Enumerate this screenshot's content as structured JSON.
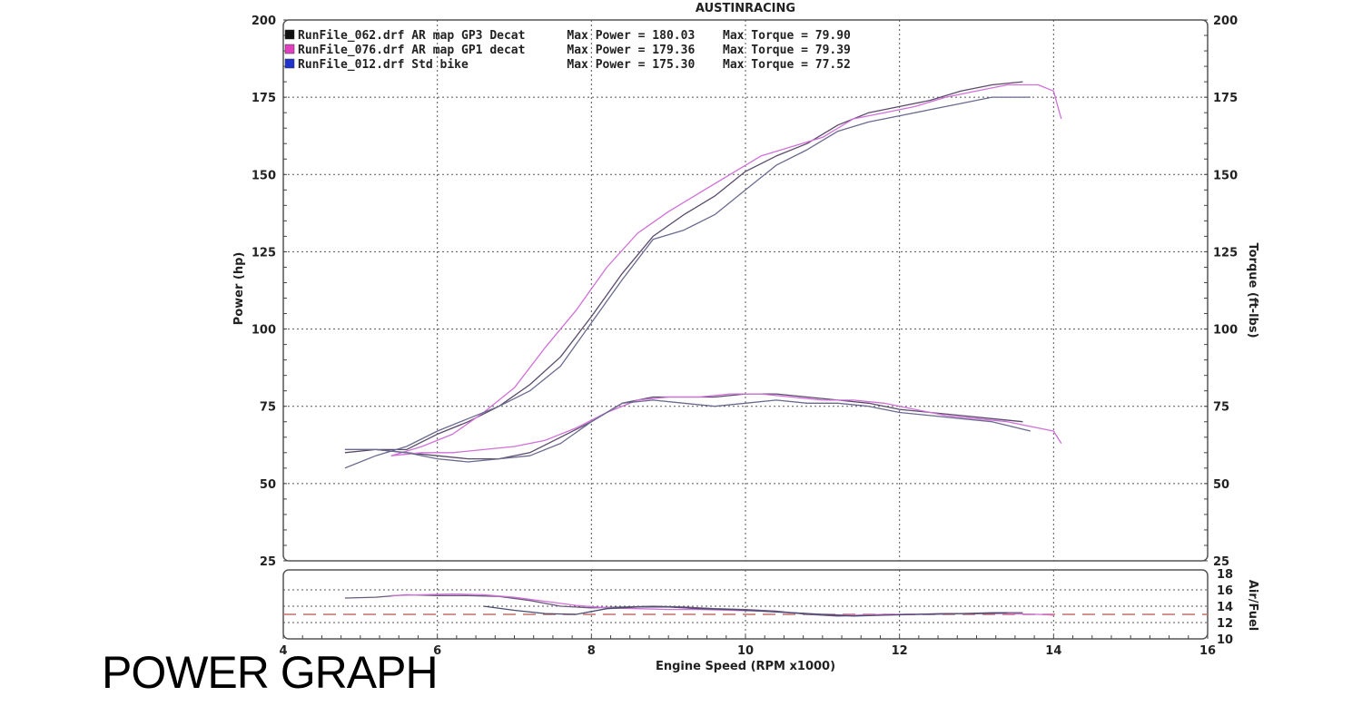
{
  "caption": "POWER GRAPH",
  "chart_data": {
    "type": "line",
    "title": "AUSTINRACING",
    "xlabel": "Engine Speed (RPM x1000)",
    "ylabel_left": "Power (hp)",
    "ylabel_right": "Torque (ft-lbs)",
    "ylabel_afr": "Air/Fuel",
    "xlim": [
      4,
      16
    ],
    "ylim": [
      25,
      200
    ],
    "afr_ylim": [
      10,
      18
    ],
    "xticks": [
      "4",
      "6",
      "8",
      "10",
      "12",
      "14",
      "16"
    ],
    "yticks": [
      "25",
      "50",
      "75",
      "100",
      "125",
      "150",
      "175",
      "200"
    ],
    "afr_ticks": [
      "10",
      "12",
      "14",
      "16",
      "18"
    ],
    "grid": true,
    "legend_position": "top-left",
    "legend": [
      {
        "color": "#111111",
        "file": "RunFile_062.drf",
        "desc": "AR map GP3 Decat",
        "power_label": "Max Power =",
        "power_value": "180.03",
        "torque_label": "Max Torque =",
        "torque_value": "79.90"
      },
      {
        "color": "#e040c0",
        "file": "RunFile_076.drf",
        "desc": "AR map GP1 decat",
        "power_label": "Max Power =",
        "power_value": "179.36",
        "torque_label": "Max Torque =",
        "torque_value": "79.39"
      },
      {
        "color": "#2233cc",
        "file": "RunFile_012.drf",
        "desc": "Std bike",
        "power_label": "Max Power =",
        "power_value": "175.30",
        "torque_label": "Max Torque =",
        "torque_value": "77.52"
      }
    ],
    "series": [
      {
        "kind": "power",
        "color": "#5a4a6a",
        "width": 1.3,
        "x": [
          4.8,
          5.2,
          5.6,
          6.0,
          6.4,
          6.8,
          7.2,
          7.6,
          8.0,
          8.4,
          8.8,
          9.2,
          9.6,
          10.0,
          10.4,
          10.8,
          11.2,
          11.6,
          12.0,
          12.4,
          12.8,
          13.2,
          13.6
        ],
        "y": [
          60,
          61,
          61,
          66,
          70,
          75,
          82,
          91,
          104,
          118,
          130,
          137,
          143,
          151,
          156,
          160,
          166,
          170,
          172,
          174,
          177,
          179,
          180
        ]
      },
      {
        "kind": "power",
        "color": "#d070d8",
        "width": 1.3,
        "x": [
          5.4,
          5.8,
          6.2,
          6.6,
          7.0,
          7.4,
          7.8,
          8.2,
          8.6,
          9.0,
          9.4,
          9.8,
          10.2,
          10.6,
          11.0,
          11.4,
          11.8,
          12.2,
          12.6,
          13.0,
          13.4,
          13.8,
          14.0,
          14.1
        ],
        "y": [
          59,
          62,
          66,
          73,
          81,
          94,
          106,
          120,
          131,
          138,
          144,
          150,
          156,
          159,
          162,
          168,
          170,
          172,
          175,
          177,
          179,
          179,
          177,
          168
        ]
      },
      {
        "kind": "power",
        "color": "#6a6a90",
        "width": 1.3,
        "x": [
          4.8,
          5.2,
          5.6,
          6.0,
          6.4,
          6.8,
          7.2,
          7.6,
          8.0,
          8.4,
          8.8,
          9.2,
          9.6,
          10.0,
          10.4,
          10.8,
          11.2,
          11.6,
          12.0,
          12.4,
          12.8,
          13.2,
          13.7
        ],
        "y": [
          55,
          59,
          62,
          67,
          71,
          75,
          80,
          88,
          102,
          116,
          129,
          132,
          137,
          145,
          153,
          158,
          164,
          167,
          169,
          171,
          173,
          175,
          175
        ]
      },
      {
        "kind": "torque",
        "color": "#5a4a6a",
        "width": 1.3,
        "x": [
          4.8,
          5.2,
          5.6,
          6.0,
          6.4,
          6.8,
          7.2,
          7.6,
          8.0,
          8.4,
          8.8,
          9.2,
          9.6,
          10.0,
          10.4,
          10.8,
          11.2,
          11.6,
          12.0,
          12.4,
          12.8,
          13.2,
          13.6
        ],
        "y": [
          61,
          61,
          60,
          59,
          58,
          58,
          60,
          65,
          70,
          76,
          78,
          78,
          78,
          79,
          79,
          78,
          77,
          76,
          74,
          73,
          72,
          71,
          70
        ]
      },
      {
        "kind": "torque",
        "color": "#d070d8",
        "width": 1.3,
        "x": [
          5.4,
          5.8,
          6.2,
          6.6,
          7.0,
          7.4,
          7.8,
          8.2,
          8.6,
          9.0,
          9.4,
          9.8,
          10.2,
          10.6,
          11.0,
          11.4,
          11.8,
          12.2,
          12.6,
          13.0,
          13.4,
          13.8,
          14.0,
          14.1
        ],
        "y": [
          59,
          60,
          60,
          61,
          62,
          64,
          68,
          73,
          77,
          78,
          78,
          79,
          79,
          78,
          77,
          77,
          76,
          74,
          72,
          71,
          70,
          68,
          67,
          63
        ]
      },
      {
        "kind": "torque",
        "color": "#6a6a90",
        "width": 1.3,
        "x": [
          4.8,
          5.2,
          5.6,
          6.0,
          6.4,
          6.8,
          7.2,
          7.6,
          8.0,
          8.4,
          8.8,
          9.2,
          9.6,
          10.0,
          10.4,
          10.8,
          11.2,
          11.6,
          12.0,
          12.4,
          12.8,
          13.2,
          13.7
        ],
        "y": [
          61,
          61,
          60,
          58,
          57,
          58,
          59,
          63,
          70,
          76,
          77,
          76,
          75,
          76,
          77,
          76,
          76,
          75,
          73,
          72,
          71,
          70,
          67
        ]
      },
      {
        "kind": "afr",
        "color": "#6a5a7a",
        "width": 1.3,
        "x": [
          4.8,
          5.2,
          5.6,
          6.0,
          6.4,
          6.8,
          7.2,
          7.6,
          8.0,
          8.4,
          8.8,
          9.2,
          9.6,
          10.0,
          10.4,
          10.8,
          11.2,
          11.6,
          12.0,
          12.4,
          12.8,
          13.2,
          13.6
        ],
        "y": [
          15.0,
          15.1,
          15.4,
          15.3,
          15.3,
          15.2,
          14.7,
          14.0,
          13.8,
          13.9,
          14.0,
          13.9,
          13.7,
          13.6,
          13.4,
          13.0,
          12.8,
          12.9,
          13.0,
          13.0,
          13.1,
          13.2,
          13.2
        ]
      },
      {
        "kind": "afr",
        "color": "#d070d8",
        "width": 1.3,
        "x": [
          5.4,
          5.8,
          6.2,
          6.6,
          7.0,
          7.4,
          7.8,
          8.2,
          8.6,
          9.0,
          9.4,
          9.8,
          10.2,
          10.6,
          11.0,
          11.4,
          11.8,
          12.2,
          12.6,
          13.0,
          13.4,
          13.8,
          14.0
        ],
        "y": [
          15.3,
          15.4,
          15.5,
          15.4,
          15.1,
          14.6,
          14.1,
          13.8,
          13.7,
          13.6,
          13.6,
          13.5,
          13.4,
          13.2,
          13.0,
          12.9,
          13.0,
          13.0,
          13.1,
          13.1,
          13.1,
          13.0,
          12.9
        ]
      },
      {
        "kind": "afr",
        "color": "#4a4a70",
        "width": 1.3,
        "x": [
          6.6,
          7.0,
          7.4,
          7.8,
          8.2,
          8.6,
          9.0,
          9.4,
          9.8,
          10.2,
          10.6,
          11.0,
          11.4,
          11.8,
          12.2,
          12.6,
          13.0,
          13.4
        ],
        "y": [
          14.0,
          13.5,
          13.1,
          13.0,
          13.7,
          13.9,
          13.9,
          13.7,
          13.6,
          13.4,
          13.2,
          13.0,
          12.8,
          12.9,
          13.0,
          13.1,
          13.1,
          13.2
        ]
      }
    ],
    "afr_reference": 13.0
  }
}
